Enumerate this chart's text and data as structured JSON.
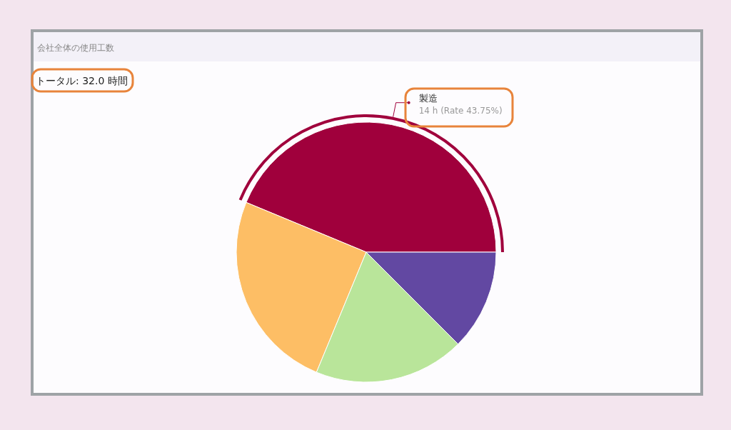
{
  "chart_data": {
    "type": "pie",
    "title": "会社全体の使用工数",
    "annotations": [
      "トータル: 32.0 時間"
    ],
    "categories": [
      "製造",
      null,
      null,
      null
    ],
    "values": [
      14,
      8,
      6,
      4
    ],
    "value_labels": [
      "14 h (Rate 43.75%)",
      null,
      null,
      null
    ],
    "colors": [
      "#a0003c",
      "#fdbe65",
      "#b9e59a",
      "#6248a2"
    ]
  }
}
